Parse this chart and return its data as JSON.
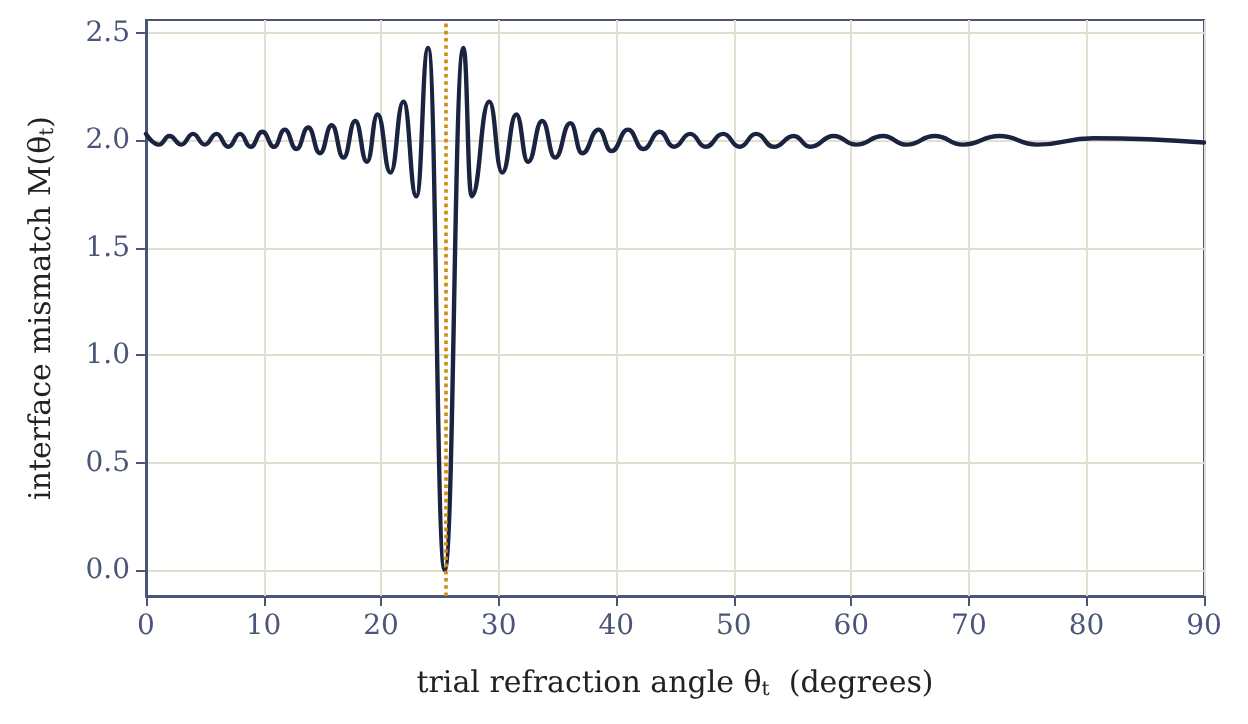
{
  "chart_data": {
    "type": "line",
    "xlabel": "trial refraction angle θ$_{t}$  (degrees)",
    "ylabel": "interface mismatch M(θ$_{t}$)",
    "xlim": [
      0,
      90
    ],
    "xticks": [
      0,
      10,
      20,
      30,
      40,
      50,
      60,
      70,
      80,
      90
    ],
    "ylim": [
      -0.12,
      2.56
    ],
    "yticks": [
      {
        "value": 0,
        "label": "0.0"
      },
      {
        "value": 0.5,
        "label": "0.5"
      },
      {
        "value": 1,
        "label": "1.0"
      },
      {
        "value": 1.5,
        "label": "1.5"
      },
      {
        "value": 2,
        "label": "2.0"
      },
      {
        "value": 2.5,
        "label": "2.5"
      }
    ],
    "grid": true,
    "marker": "none",
    "line_style": "solid",
    "ref_lines": [
      {
        "axis": "x",
        "value": 25.4,
        "color": "#d08a10",
        "line_style": "dotted"
      }
    ],
    "series": [
      {
        "color": "#1a2340",
        "x": [
          0,
          1.1,
          2.0,
          3.0,
          4.0,
          5.0,
          6.0,
          7.0,
          8.0,
          8.9,
          9.9,
          10.9,
          11.8,
          12.8,
          13.8,
          14.8,
          15.8,
          16.8,
          17.8,
          18.8,
          19.7,
          20.8,
          21.9,
          23.0,
          24.0,
          25.4,
          27.0,
          27.7,
          29.2,
          30.3,
          31.5,
          32.5,
          33.7,
          34.8,
          36.1,
          37.1,
          38.5,
          39.6,
          41.0,
          42.3,
          43.7,
          44.9,
          46.3,
          47.6,
          49.1,
          50.5,
          51.9,
          53.4,
          55.1,
          56.5,
          58.5,
          60.4,
          62.7,
          64.7,
          67.1,
          69.5,
          72.6,
          75.8,
          80.6,
          90
        ],
        "values": [
          2.03,
          1.98,
          2.02,
          1.98,
          2.03,
          1.98,
          2.03,
          1.97,
          2.03,
          1.97,
          2.04,
          1.97,
          2.05,
          1.96,
          2.06,
          1.94,
          2.07,
          1.92,
          2.09,
          1.9,
          2.12,
          1.85,
          2.18,
          1.74,
          2.43,
          0.0,
          2.43,
          1.74,
          2.18,
          1.85,
          2.12,
          1.9,
          2.09,
          1.92,
          2.08,
          1.94,
          2.05,
          1.95,
          2.05,
          1.96,
          2.04,
          1.97,
          2.03,
          1.97,
          2.03,
          1.97,
          2.03,
          1.97,
          2.02,
          1.97,
          2.02,
          1.98,
          2.02,
          1.98,
          2.02,
          1.98,
          2.02,
          1.98,
          2.01,
          1.99
        ]
      }
    ]
  }
}
